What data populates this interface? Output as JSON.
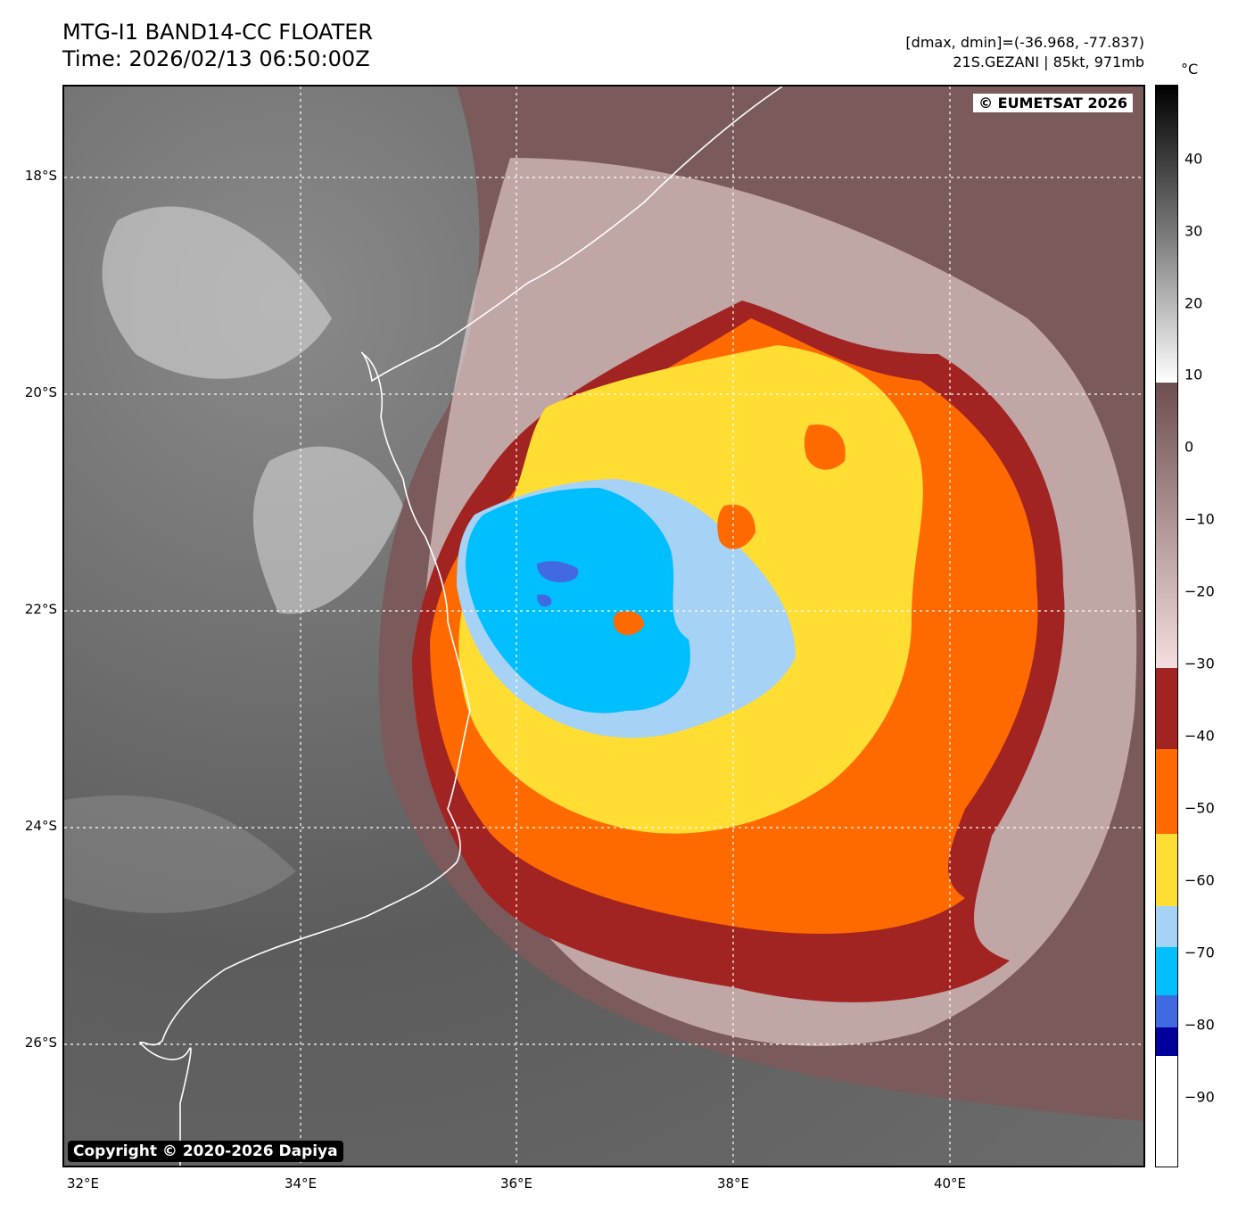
{
  "header": {
    "title_line1": "MTG-I1 BAND14-CC FLOATER",
    "title_line2": "Time: 2026/02/13 06:50:00Z",
    "stats_line": "[dmax, dmin]=(-36.968, -77.837)",
    "storm_line": "21S.GEZANI | 85kt, 971mb"
  },
  "map": {
    "watermark_top": "© EUMETSAT 2026",
    "watermark_bottom": "Copyright © 2020-2026 Dapiya",
    "lat_labels": [
      "18°S",
      "20°S",
      "22°S",
      "24°S",
      "26°S"
    ],
    "lon_labels": [
      "32°E",
      "34°E",
      "36°E",
      "38°E",
      "40°E"
    ]
  },
  "colorbar": {
    "unit": "°C",
    "tick_labels": [
      "40",
      "30",
      "20",
      "10",
      "0",
      "−10",
      "−20",
      "−30",
      "−40",
      "−50",
      "−60",
      "−70",
      "−80",
      "−90"
    ],
    "colors": {
      "warm_black": "#000000",
      "mid_gray": "#808080",
      "white": "#ffffff",
      "brown": "#7a5a5a",
      "pink": "#f0d8d8",
      "dark_red": "#a22422",
      "orange": "#ff6a00",
      "yellow": "#ffdd33",
      "light_blue": "#a6d2f5",
      "cyan": "#00bfff",
      "royal_blue": "#4169e1",
      "navy": "#00009c"
    }
  }
}
